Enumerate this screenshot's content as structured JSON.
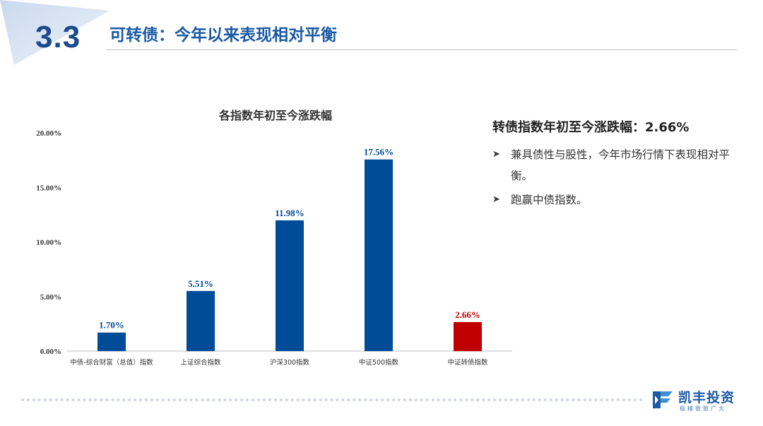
{
  "header": {
    "section_number": "3.3",
    "title": "可转债：今年以来表现相对平衡"
  },
  "side_panel": {
    "heading": "转债指数年初至今涨跌幅：2.66%",
    "bullets": [
      "兼具债性与股性，今年市场行情下表现相对平衡。",
      "跑赢中债指数。"
    ]
  },
  "logo": {
    "name": "凯丰投资",
    "slogan": "极精致致广大"
  },
  "colors": {
    "primary_blue": "#004c98",
    "highlight_red": "#c00000",
    "title_blue": "#1a5aa5"
  },
  "chart_data": {
    "type": "bar",
    "title": "各指数年初至今涨跌幅",
    "categories": [
      "中债-综合财富（总值）指数",
      "上证综合指数",
      "沪深300指数",
      "中证500指数",
      "中证转债指数"
    ],
    "values": [
      1.7,
      5.51,
      11.98,
      17.56,
      2.66
    ],
    "value_labels": [
      "1.70%",
      "5.51%",
      "11.98%",
      "17.56%",
      "2.66%"
    ],
    "bar_colors": [
      "#004c98",
      "#004c98",
      "#004c98",
      "#004c98",
      "#c00000"
    ],
    "y_ticks": [
      0,
      5,
      10,
      15,
      20
    ],
    "y_tick_labels": [
      "0.00%",
      "5.00%",
      "10.00%",
      "15.00%",
      "20.00%"
    ],
    "ylim": [
      0,
      20
    ],
    "xlabel": "",
    "ylabel": "",
    "grid": false,
    "legend": "none"
  }
}
